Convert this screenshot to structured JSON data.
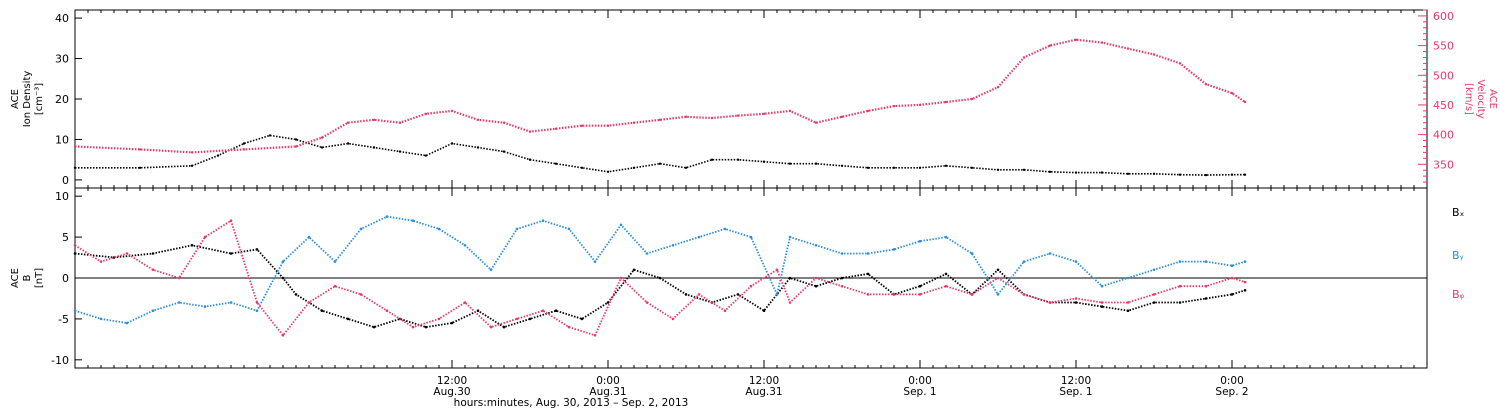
{
  "colors": {
    "density": "#000000",
    "velocity": "#e8386a",
    "bx": "#000000",
    "by": "#2a8ee0",
    "bz": "#e8386a",
    "axis": "#000000"
  },
  "time_axis": {
    "caption": "hours:minutes, Aug. 30, 2013 – Sep. 2, 2013",
    "range_hours": [
      -17,
      87
    ],
    "ticks": [
      {
        "h": 12,
        "label": "12:00",
        "sub": "Aug.30"
      },
      {
        "h": 24,
        "label": "0:00",
        "sub": "Aug.31"
      },
      {
        "h": 36,
        "label": "12:00",
        "sub": "Aug.31"
      },
      {
        "h": 48,
        "label": "0:00",
        "sub": "Sep. 1"
      },
      {
        "h": 60,
        "label": "12:00",
        "sub": "Sep. 1"
      },
      {
        "h": 72,
        "label": "0:00",
        "sub": "Sep. 2"
      }
    ]
  },
  "chart_data": [
    {
      "type": "scatter",
      "panel": "top",
      "left_axis": {
        "label_lines": [
          "ACE",
          "Ion Density",
          "[cm⁻³]"
        ],
        "ylim": [
          -2,
          42
        ],
        "ticks": [
          0,
          10,
          20,
          30,
          40
        ]
      },
      "right_axis": {
        "label_lines": [
          "ACE",
          "Velocity",
          "[km/s]"
        ],
        "ylim": [
          310,
          610
        ],
        "ticks": [
          350,
          400,
          450,
          500,
          550,
          600
        ]
      },
      "series": [
        {
          "key": "density",
          "axis": "left",
          "points": [
            [
              -17,
              3
            ],
            [
              -12,
              3
            ],
            [
              -8,
              3.5
            ],
            [
              -6,
              6
            ],
            [
              -4,
              9
            ],
            [
              -2,
              11
            ],
            [
              0,
              10
            ],
            [
              2,
              8
            ],
            [
              4,
              9
            ],
            [
              6,
              8
            ],
            [
              8,
              7
            ],
            [
              10,
              6
            ],
            [
              12,
              9
            ],
            [
              14,
              8
            ],
            [
              16,
              7
            ],
            [
              18,
              5
            ],
            [
              20,
              4
            ],
            [
              22,
              3
            ],
            [
              24,
              2
            ],
            [
              26,
              3
            ],
            [
              28,
              4
            ],
            [
              30,
              3
            ],
            [
              32,
              5
            ],
            [
              34,
              5
            ],
            [
              36,
              4.5
            ],
            [
              38,
              4
            ],
            [
              40,
              4
            ],
            [
              42,
              3.5
            ],
            [
              44,
              3
            ],
            [
              46,
              3
            ],
            [
              48,
              3
            ],
            [
              50,
              3.5
            ],
            [
              52,
              3
            ],
            [
              54,
              2.5
            ],
            [
              56,
              2.5
            ],
            [
              58,
              2
            ],
            [
              60,
              1.8
            ],
            [
              62,
              1.8
            ],
            [
              64,
              1.5
            ],
            [
              66,
              1.5
            ],
            [
              68,
              1.3
            ],
            [
              70,
              1.2
            ],
            [
              72,
              1.3
            ],
            [
              73,
              1.3
            ]
          ]
        },
        {
          "key": "velocity",
          "axis": "right",
          "points": [
            [
              -17,
              380
            ],
            [
              -12,
              375
            ],
            [
              -8,
              370
            ],
            [
              -4,
              375
            ],
            [
              0,
              380
            ],
            [
              2,
              395
            ],
            [
              4,
              420
            ],
            [
              6,
              425
            ],
            [
              8,
              420
            ],
            [
              10,
              435
            ],
            [
              12,
              440
            ],
            [
              14,
              425
            ],
            [
              16,
              420
            ],
            [
              18,
              405
            ],
            [
              20,
              410
            ],
            [
              22,
              415
            ],
            [
              24,
              415
            ],
            [
              26,
              420
            ],
            [
              28,
              425
            ],
            [
              30,
              430
            ],
            [
              32,
              428
            ],
            [
              34,
              432
            ],
            [
              36,
              435
            ],
            [
              38,
              440
            ],
            [
              40,
              420
            ],
            [
              42,
              430
            ],
            [
              44,
              440
            ],
            [
              46,
              448
            ],
            [
              48,
              450
            ],
            [
              50,
              455
            ],
            [
              52,
              460
            ],
            [
              54,
              480
            ],
            [
              56,
              530
            ],
            [
              58,
              550
            ],
            [
              60,
              560
            ],
            [
              62,
              555
            ],
            [
              64,
              545
            ],
            [
              66,
              535
            ],
            [
              68,
              520
            ],
            [
              70,
              485
            ],
            [
              72,
              470
            ],
            [
              73,
              455
            ]
          ]
        }
      ]
    },
    {
      "type": "scatter",
      "panel": "bottom",
      "left_axis": {
        "label_lines": [
          "ACE",
          "B",
          "[nT]"
        ],
        "ylim": [
          -11,
          11
        ],
        "ticks": [
          -10,
          -5,
          0,
          5,
          10
        ]
      },
      "legend": {
        "placement": "right",
        "entries": [
          {
            "key": "bx",
            "label": "Bₓ"
          },
          {
            "key": "by",
            "label": "Bᵧ"
          },
          {
            "key": "bz",
            "label": "Bᵩ"
          }
        ]
      },
      "series": [
        {
          "key": "bx",
          "points": [
            [
              -17,
              3
            ],
            [
              -14,
              2.5
            ],
            [
              -11,
              3
            ],
            [
              -8,
              4
            ],
            [
              -5,
              3
            ],
            [
              -3,
              3.5
            ],
            [
              -1,
              0
            ],
            [
              0,
              -2
            ],
            [
              2,
              -4
            ],
            [
              4,
              -5
            ],
            [
              6,
              -6
            ],
            [
              8,
              -5
            ],
            [
              10,
              -6
            ],
            [
              12,
              -5.5
            ],
            [
              14,
              -4
            ],
            [
              16,
              -6
            ],
            [
              18,
              -5
            ],
            [
              20,
              -4
            ],
            [
              22,
              -5
            ],
            [
              24,
              -3
            ],
            [
              26,
              1
            ],
            [
              28,
              0
            ],
            [
              30,
              -2
            ],
            [
              32,
              -3
            ],
            [
              34,
              -2
            ],
            [
              36,
              -4
            ],
            [
              38,
              0
            ],
            [
              40,
              -1
            ],
            [
              42,
              0
            ],
            [
              44,
              0.5
            ],
            [
              46,
              -2
            ],
            [
              48,
              -1
            ],
            [
              50,
              0.5
            ],
            [
              52,
              -2
            ],
            [
              54,
              1
            ],
            [
              56,
              -2
            ],
            [
              58,
              -3
            ],
            [
              60,
              -3
            ],
            [
              62,
              -3.5
            ],
            [
              64,
              -4
            ],
            [
              66,
              -3
            ],
            [
              68,
              -3
            ],
            [
              70,
              -2.5
            ],
            [
              72,
              -2
            ],
            [
              73,
              -1.5
            ]
          ]
        },
        {
          "key": "by",
          "points": [
            [
              -17,
              -4
            ],
            [
              -15,
              -5
            ],
            [
              -13,
              -5.5
            ],
            [
              -11,
              -4
            ],
            [
              -9,
              -3
            ],
            [
              -7,
              -3.5
            ],
            [
              -5,
              -3
            ],
            [
              -3,
              -4
            ],
            [
              -1,
              2
            ],
            [
              1,
              5
            ],
            [
              3,
              2
            ],
            [
              5,
              6
            ],
            [
              7,
              7.5
            ],
            [
              9,
              7
            ],
            [
              11,
              6
            ],
            [
              13,
              4
            ],
            [
              15,
              1
            ],
            [
              17,
              6
            ],
            [
              19,
              7
            ],
            [
              21,
              6
            ],
            [
              23,
              2
            ],
            [
              25,
              6.5
            ],
            [
              27,
              3
            ],
            [
              29,
              4
            ],
            [
              31,
              5
            ],
            [
              33,
              6
            ],
            [
              35,
              5
            ],
            [
              37,
              -2
            ],
            [
              38,
              5
            ],
            [
              40,
              4
            ],
            [
              42,
              3
            ],
            [
              44,
              3
            ],
            [
              46,
              3.5
            ],
            [
              48,
              4.5
            ],
            [
              50,
              5
            ],
            [
              52,
              3
            ],
            [
              54,
              -2
            ],
            [
              56,
              2
            ],
            [
              58,
              3
            ],
            [
              60,
              2
            ],
            [
              62,
              -1
            ],
            [
              64,
              0
            ],
            [
              66,
              1
            ],
            [
              68,
              2
            ],
            [
              70,
              2
            ],
            [
              72,
              1.5
            ],
            [
              73,
              2
            ]
          ]
        },
        {
          "key": "bz",
          "points": [
            [
              -17,
              4
            ],
            [
              -15,
              2
            ],
            [
              -13,
              3
            ],
            [
              -11,
              1
            ],
            [
              -9,
              0
            ],
            [
              -7,
              5
            ],
            [
              -5,
              7
            ],
            [
              -3,
              -3
            ],
            [
              -1,
              -7
            ],
            [
              1,
              -3
            ],
            [
              3,
              -1
            ],
            [
              5,
              -2
            ],
            [
              7,
              -4
            ],
            [
              9,
              -6
            ],
            [
              11,
              -5
            ],
            [
              13,
              -3
            ],
            [
              15,
              -6
            ],
            [
              17,
              -5
            ],
            [
              19,
              -4
            ],
            [
              21,
              -6
            ],
            [
              23,
              -7
            ],
            [
              25,
              0
            ],
            [
              27,
              -3
            ],
            [
              29,
              -5
            ],
            [
              31,
              -2
            ],
            [
              33,
              -4
            ],
            [
              35,
              -1
            ],
            [
              37,
              1
            ],
            [
              38,
              -3
            ],
            [
              40,
              0
            ],
            [
              42,
              -1
            ],
            [
              44,
              -2
            ],
            [
              46,
              -2
            ],
            [
              48,
              -2
            ],
            [
              50,
              -1
            ],
            [
              52,
              -2
            ],
            [
              54,
              0
            ],
            [
              56,
              -2
            ],
            [
              58,
              -3
            ],
            [
              60,
              -2.5
            ],
            [
              62,
              -3
            ],
            [
              64,
              -3
            ],
            [
              66,
              -2
            ],
            [
              68,
              -1
            ],
            [
              70,
              -1
            ],
            [
              72,
              0
            ],
            [
              73,
              -0.5
            ]
          ]
        }
      ]
    }
  ]
}
